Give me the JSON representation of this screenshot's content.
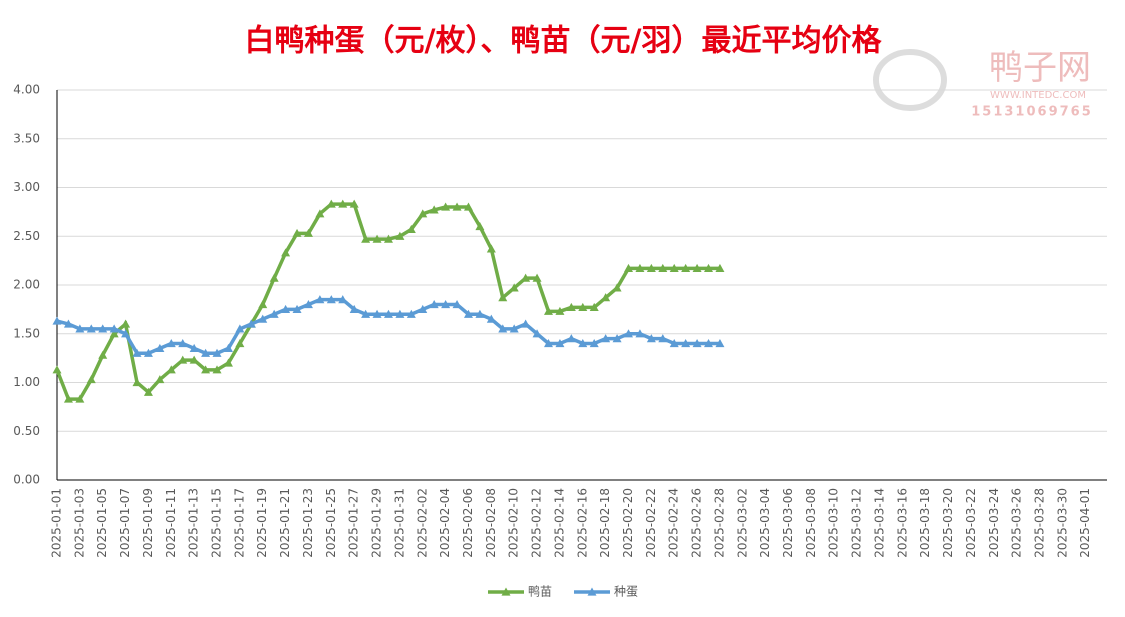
{
  "chart_data": {
    "type": "line",
    "title": "白鸭种蛋（元/枚）、鸭苗（元/羽）最近平均价格",
    "watermark": {
      "name": "鸭子网",
      "site": "WWW.INTEDC.COM",
      "phone": "15131069765"
    },
    "categories": [
      "2025-01-01",
      null,
      "2025-01-03",
      null,
      "2025-01-05",
      null,
      "2025-01-07",
      null,
      "2025-01-09",
      null,
      "2025-01-11",
      null,
      "2025-01-13",
      null,
      "2025-01-15",
      null,
      "2025-01-17",
      null,
      "2025-01-19",
      null,
      "2025-01-21",
      null,
      "2025-01-23",
      null,
      "2025-01-25",
      null,
      "2025-01-27",
      null,
      "2025-01-29",
      null,
      "2025-01-31",
      null,
      "2025-02-02",
      null,
      "2025-02-04",
      null,
      "2025-02-06",
      null,
      "2025-02-08",
      null,
      "2025-02-10",
      null,
      "2025-02-12",
      null,
      "2025-02-14",
      null,
      "2025-02-16",
      null,
      "2025-02-18",
      null,
      "2025-02-20",
      null,
      "2025-02-22",
      null,
      "2025-02-24",
      null,
      "2025-02-26",
      null,
      "2025-02-28",
      null,
      "2025-03-02",
      null,
      "2025-03-04",
      null,
      "2025-03-06",
      null,
      "2025-03-08",
      null,
      "2025-03-10",
      null,
      "2025-03-12",
      null,
      "2025-03-14",
      null,
      "2025-03-16",
      null,
      "2025-03-18",
      null,
      "2025-03-20",
      null,
      "2025-03-22",
      null,
      "2025-03-24",
      null,
      "2025-03-26",
      null,
      "2025-03-28",
      null,
      "2025-03-30",
      null,
      "2025-04-01"
    ],
    "series": [
      {
        "name": "鸭苗",
        "color": "#70ad47",
        "values": [
          1.13,
          0.83,
          0.83,
          1.03,
          1.28,
          1.5,
          1.6,
          1.0,
          0.9,
          1.03,
          1.13,
          1.23,
          1.23,
          1.13,
          1.13,
          1.2,
          1.4,
          1.6,
          1.8,
          2.07,
          2.33,
          2.53,
          2.53,
          2.73,
          2.83,
          2.83,
          2.83,
          2.47,
          2.47,
          2.47,
          2.5,
          2.57,
          2.73,
          2.77,
          2.8,
          2.8,
          2.8,
          2.6,
          2.37,
          1.87,
          1.97,
          2.07,
          2.07,
          1.73,
          1.73,
          1.77,
          1.77,
          1.77,
          1.87,
          1.97,
          2.17,
          2.17,
          2.17,
          2.17,
          2.17,
          2.17,
          2.17,
          2.17,
          2.17,
          null,
          null,
          null,
          null,
          null,
          null,
          null,
          null,
          null,
          null,
          null,
          null,
          null,
          null,
          null,
          null,
          null,
          null,
          null,
          null,
          null,
          null,
          null,
          null,
          null,
          null,
          null,
          null,
          null,
          null,
          null,
          null
        ]
      },
      {
        "name": "种蛋",
        "color": "#5b9bd5",
        "values": [
          1.63,
          1.6,
          1.55,
          1.55,
          1.55,
          1.55,
          1.5,
          1.3,
          1.3,
          1.35,
          1.4,
          1.4,
          1.35,
          1.3,
          1.3,
          1.35,
          1.55,
          1.6,
          1.65,
          1.7,
          1.75,
          1.75,
          1.8,
          1.85,
          1.85,
          1.85,
          1.75,
          1.7,
          1.7,
          1.7,
          1.7,
          1.7,
          1.75,
          1.8,
          1.8,
          1.8,
          1.7,
          1.7,
          1.65,
          1.55,
          1.55,
          1.6,
          1.5,
          1.4,
          1.4,
          1.45,
          1.4,
          1.4,
          1.45,
          1.45,
          1.5,
          1.5,
          1.45,
          1.45,
          1.4,
          1.4,
          1.4,
          1.4,
          1.4,
          null,
          null,
          null,
          null,
          null,
          null,
          null,
          null,
          null,
          null,
          null,
          null,
          null,
          null,
          null,
          null,
          null,
          null,
          null,
          null,
          null,
          null,
          null,
          null,
          null,
          null,
          null,
          null,
          null,
          null,
          null,
          null
        ]
      }
    ],
    "ylim": [
      0,
      4
    ],
    "yticks": [
      {
        "value": 0,
        "label": "0.00"
      },
      {
        "value": 0.5,
        "label": "0.50"
      },
      {
        "value": 1,
        "label": "1.00"
      },
      {
        "value": 1.5,
        "label": "1.50"
      },
      {
        "value": 2,
        "label": "2.00"
      },
      {
        "value": 2.5,
        "label": "2.50"
      },
      {
        "value": 3,
        "label": "3.00"
      },
      {
        "value": 3.5,
        "label": "3.50"
      },
      {
        "value": 4,
        "label": "4.00"
      }
    ],
    "grid": true,
    "legend": "bottom"
  }
}
